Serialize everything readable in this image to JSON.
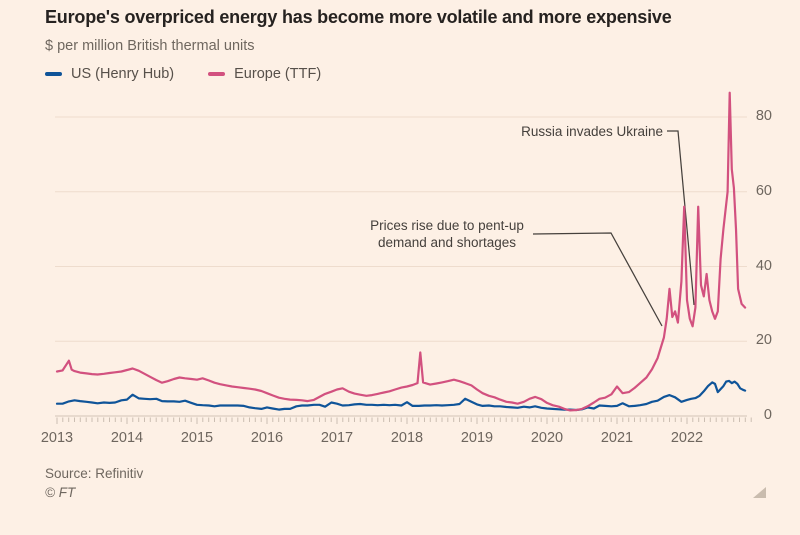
{
  "footer": {
    "source": "Source: Refinitiv",
    "copyright": "© FT"
  },
  "colors": {
    "background": "#fdf0e5",
    "title_text": "#262220",
    "muted_text": "#6f675f",
    "annotation_text": "#45403c",
    "gridline": "#eedccd",
    "zero_line": "#d3c5b8",
    "tick": "#cbbeb2",
    "us_line": "#0f5499",
    "europe_line": "#d2517f"
  },
  "chart_data": {
    "type": "line",
    "title": "Europe's overpriced energy has become more volatile and more expensive",
    "unit_label": "$ per million British thermal units",
    "xlabel": "",
    "ylabel": "$ per million British thermal units",
    "xlim": [
      2013,
      2023
    ],
    "ylim": [
      0,
      88
    ],
    "grid": "horizontal",
    "legend_position": "top-left",
    "y_ticks": [
      0,
      20,
      40,
      60,
      80
    ],
    "x_tick_labels": [
      "2013",
      "2014",
      "2015",
      "2016",
      "2017",
      "2018",
      "2019",
      "2020",
      "2021",
      "2022"
    ],
    "annotations": [
      {
        "text": "Russia invades Ukraine",
        "points_to": {
          "x": 2022.1,
          "y": 30
        }
      },
      {
        "text": "Prices rise due to pent-up demand and shortages",
        "lines": [
          "Prices rise due to pent-up",
          "demand and shortages"
        ],
        "points_to": {
          "x": 2021.65,
          "y": 24
        }
      }
    ],
    "series": [
      {
        "name": "US (Henry Hub)",
        "color": "#0f5499",
        "points": [
          [
            2013.0,
            3.3
          ],
          [
            2013.08,
            3.3
          ],
          [
            2013.17,
            3.9
          ],
          [
            2013.25,
            4.2
          ],
          [
            2013.33,
            4.0
          ],
          [
            2013.42,
            3.8
          ],
          [
            2013.5,
            3.6
          ],
          [
            2013.58,
            3.4
          ],
          [
            2013.67,
            3.6
          ],
          [
            2013.75,
            3.5
          ],
          [
            2013.83,
            3.6
          ],
          [
            2013.92,
            4.2
          ],
          [
            2014.0,
            4.4
          ],
          [
            2014.08,
            5.7
          ],
          [
            2014.17,
            4.7
          ],
          [
            2014.25,
            4.6
          ],
          [
            2014.33,
            4.5
          ],
          [
            2014.42,
            4.6
          ],
          [
            2014.5,
            4.0
          ],
          [
            2014.58,
            3.9
          ],
          [
            2014.67,
            3.9
          ],
          [
            2014.75,
            3.8
          ],
          [
            2014.83,
            4.1
          ],
          [
            2014.92,
            3.5
          ],
          [
            2015.0,
            3.0
          ],
          [
            2015.08,
            2.9
          ],
          [
            2015.17,
            2.8
          ],
          [
            2015.25,
            2.6
          ],
          [
            2015.33,
            2.8
          ],
          [
            2015.42,
            2.8
          ],
          [
            2015.5,
            2.8
          ],
          [
            2015.58,
            2.8
          ],
          [
            2015.67,
            2.7
          ],
          [
            2015.75,
            2.3
          ],
          [
            2015.83,
            2.1
          ],
          [
            2015.92,
            1.9
          ],
          [
            2016.0,
            2.3
          ],
          [
            2016.08,
            2.0
          ],
          [
            2016.17,
            1.7
          ],
          [
            2016.25,
            1.9
          ],
          [
            2016.33,
            1.9
          ],
          [
            2016.42,
            2.6
          ],
          [
            2016.5,
            2.8
          ],
          [
            2016.58,
            2.8
          ],
          [
            2016.67,
            3.0
          ],
          [
            2016.75,
            3.0
          ],
          [
            2016.83,
            2.5
          ],
          [
            2016.92,
            3.6
          ],
          [
            2017.0,
            3.3
          ],
          [
            2017.08,
            2.8
          ],
          [
            2017.17,
            2.9
          ],
          [
            2017.25,
            3.1
          ],
          [
            2017.33,
            3.2
          ],
          [
            2017.42,
            3.0
          ],
          [
            2017.5,
            3.0
          ],
          [
            2017.58,
            2.9
          ],
          [
            2017.67,
            3.0
          ],
          [
            2017.75,
            2.9
          ],
          [
            2017.83,
            3.0
          ],
          [
            2017.92,
            2.8
          ],
          [
            2018.0,
            3.7
          ],
          [
            2018.08,
            2.7
          ],
          [
            2018.17,
            2.7
          ],
          [
            2018.25,
            2.8
          ],
          [
            2018.33,
            2.8
          ],
          [
            2018.42,
            2.9
          ],
          [
            2018.5,
            2.8
          ],
          [
            2018.58,
            2.9
          ],
          [
            2018.67,
            3.0
          ],
          [
            2018.75,
            3.2
          ],
          [
            2018.83,
            4.6
          ],
          [
            2018.92,
            3.8
          ],
          [
            2019.0,
            3.1
          ],
          [
            2019.08,
            2.7
          ],
          [
            2019.17,
            2.8
          ],
          [
            2019.25,
            2.6
          ],
          [
            2019.33,
            2.6
          ],
          [
            2019.42,
            2.4
          ],
          [
            2019.5,
            2.3
          ],
          [
            2019.58,
            2.2
          ],
          [
            2019.67,
            2.5
          ],
          [
            2019.75,
            2.3
          ],
          [
            2019.83,
            2.6
          ],
          [
            2019.92,
            2.2
          ],
          [
            2020.0,
            2.0
          ],
          [
            2020.08,
            1.9
          ],
          [
            2020.17,
            1.8
          ],
          [
            2020.25,
            1.7
          ],
          [
            2020.33,
            1.7
          ],
          [
            2020.42,
            1.6
          ],
          [
            2020.5,
            1.8
          ],
          [
            2020.58,
            2.3
          ],
          [
            2020.67,
            2.0
          ],
          [
            2020.75,
            2.8
          ],
          [
            2020.83,
            2.7
          ],
          [
            2020.92,
            2.6
          ],
          [
            2021.0,
            2.7
          ],
          [
            2021.08,
            3.4
          ],
          [
            2021.17,
            2.6
          ],
          [
            2021.25,
            2.7
          ],
          [
            2021.33,
            2.9
          ],
          [
            2021.42,
            3.2
          ],
          [
            2021.5,
            3.8
          ],
          [
            2021.58,
            4.1
          ],
          [
            2021.67,
            5.1
          ],
          [
            2021.75,
            5.6
          ],
          [
            2021.83,
            5.0
          ],
          [
            2021.92,
            3.8
          ],
          [
            2022.0,
            4.3
          ],
          [
            2022.06,
            4.6
          ],
          [
            2022.12,
            4.8
          ],
          [
            2022.18,
            5.4
          ],
          [
            2022.24,
            6.6
          ],
          [
            2022.3,
            8.0
          ],
          [
            2022.36,
            9.0
          ],
          [
            2022.4,
            8.6
          ],
          [
            2022.44,
            6.4
          ],
          [
            2022.48,
            7.2
          ],
          [
            2022.52,
            8.0
          ],
          [
            2022.56,
            9.2
          ],
          [
            2022.6,
            9.4
          ],
          [
            2022.64,
            8.8
          ],
          [
            2022.68,
            9.2
          ],
          [
            2022.72,
            8.6
          ],
          [
            2022.76,
            7.4
          ],
          [
            2022.8,
            7.0
          ],
          [
            2022.83,
            6.8
          ]
        ]
      },
      {
        "name": "Europe (TTF)",
        "color": "#d2517f",
        "points": [
          [
            2013.0,
            11.9
          ],
          [
            2013.08,
            12.2
          ],
          [
            2013.17,
            14.8
          ],
          [
            2013.21,
            12.4
          ],
          [
            2013.25,
            12.0
          ],
          [
            2013.33,
            11.6
          ],
          [
            2013.42,
            11.4
          ],
          [
            2013.5,
            11.2
          ],
          [
            2013.58,
            11.1
          ],
          [
            2013.67,
            11.3
          ],
          [
            2013.75,
            11.5
          ],
          [
            2013.83,
            11.7
          ],
          [
            2013.92,
            11.9
          ],
          [
            2014.0,
            12.3
          ],
          [
            2014.08,
            12.7
          ],
          [
            2014.17,
            12.1
          ],
          [
            2014.25,
            11.3
          ],
          [
            2014.33,
            10.5
          ],
          [
            2014.42,
            9.6
          ],
          [
            2014.5,
            8.9
          ],
          [
            2014.58,
            9.3
          ],
          [
            2014.67,
            9.9
          ],
          [
            2014.75,
            10.3
          ],
          [
            2014.83,
            10.1
          ],
          [
            2014.92,
            9.9
          ],
          [
            2015.0,
            9.7
          ],
          [
            2015.08,
            10.1
          ],
          [
            2015.17,
            9.5
          ],
          [
            2015.25,
            8.9
          ],
          [
            2015.33,
            8.5
          ],
          [
            2015.42,
            8.2
          ],
          [
            2015.5,
            7.9
          ],
          [
            2015.58,
            7.7
          ],
          [
            2015.67,
            7.5
          ],
          [
            2015.75,
            7.3
          ],
          [
            2015.83,
            7.1
          ],
          [
            2015.92,
            6.7
          ],
          [
            2016.0,
            6.1
          ],
          [
            2016.08,
            5.5
          ],
          [
            2016.17,
            4.9
          ],
          [
            2016.25,
            4.6
          ],
          [
            2016.33,
            4.4
          ],
          [
            2016.42,
            4.3
          ],
          [
            2016.5,
            4.2
          ],
          [
            2016.58,
            4.0
          ],
          [
            2016.67,
            4.3
          ],
          [
            2016.75,
            5.1
          ],
          [
            2016.83,
            5.9
          ],
          [
            2016.92,
            6.5
          ],
          [
            2017.0,
            7.1
          ],
          [
            2017.08,
            7.4
          ],
          [
            2017.17,
            6.5
          ],
          [
            2017.25,
            6.0
          ],
          [
            2017.33,
            5.7
          ],
          [
            2017.42,
            5.4
          ],
          [
            2017.5,
            5.6
          ],
          [
            2017.58,
            5.9
          ],
          [
            2017.67,
            6.3
          ],
          [
            2017.75,
            6.6
          ],
          [
            2017.83,
            7.1
          ],
          [
            2017.92,
            7.6
          ],
          [
            2018.0,
            7.9
          ],
          [
            2018.08,
            8.3
          ],
          [
            2018.15,
            8.8
          ],
          [
            2018.19,
            17.0
          ],
          [
            2018.23,
            9.0
          ],
          [
            2018.33,
            8.4
          ],
          [
            2018.42,
            8.7
          ],
          [
            2018.5,
            9.0
          ],
          [
            2018.58,
            9.3
          ],
          [
            2018.67,
            9.7
          ],
          [
            2018.75,
            9.3
          ],
          [
            2018.83,
            8.8
          ],
          [
            2018.92,
            8.2
          ],
          [
            2019.0,
            7.1
          ],
          [
            2019.08,
            6.1
          ],
          [
            2019.17,
            5.4
          ],
          [
            2019.25,
            5.0
          ],
          [
            2019.33,
            4.4
          ],
          [
            2019.42,
            3.8
          ],
          [
            2019.5,
            3.6
          ],
          [
            2019.58,
            3.3
          ],
          [
            2019.67,
            3.8
          ],
          [
            2019.75,
            4.6
          ],
          [
            2019.83,
            5.1
          ],
          [
            2019.92,
            4.5
          ],
          [
            2020.0,
            3.5
          ],
          [
            2020.08,
            2.9
          ],
          [
            2020.17,
            2.5
          ],
          [
            2020.25,
            1.9
          ],
          [
            2020.33,
            1.5
          ],
          [
            2020.42,
            1.6
          ],
          [
            2020.5,
            1.9
          ],
          [
            2020.58,
            2.6
          ],
          [
            2020.67,
            3.6
          ],
          [
            2020.75,
            4.6
          ],
          [
            2020.83,
            4.9
          ],
          [
            2020.92,
            5.8
          ],
          [
            2021.0,
            7.9
          ],
          [
            2021.08,
            6.1
          ],
          [
            2021.17,
            6.4
          ],
          [
            2021.25,
            7.5
          ],
          [
            2021.33,
            8.8
          ],
          [
            2021.42,
            10.3
          ],
          [
            2021.5,
            12.5
          ],
          [
            2021.58,
            15.5
          ],
          [
            2021.67,
            21.0
          ],
          [
            2021.71,
            26.0
          ],
          [
            2021.75,
            34.0
          ],
          [
            2021.79,
            26.5
          ],
          [
            2021.83,
            28.0
          ],
          [
            2021.87,
            25.0
          ],
          [
            2021.92,
            36.0
          ],
          [
            2021.96,
            56.0
          ],
          [
            2022.0,
            31.0
          ],
          [
            2022.04,
            26.0
          ],
          [
            2022.08,
            24.0
          ],
          [
            2022.12,
            29.0
          ],
          [
            2022.16,
            56.0
          ],
          [
            2022.2,
            35.0
          ],
          [
            2022.24,
            32.0
          ],
          [
            2022.28,
            38.0
          ],
          [
            2022.32,
            31.0
          ],
          [
            2022.36,
            28.0
          ],
          [
            2022.4,
            26.0
          ],
          [
            2022.44,
            28.0
          ],
          [
            2022.48,
            42.0
          ],
          [
            2022.52,
            50.0
          ],
          [
            2022.55,
            55.0
          ],
          [
            2022.58,
            60.0
          ],
          [
            2022.61,
            86.5
          ],
          [
            2022.64,
            66.0
          ],
          [
            2022.67,
            61.0
          ],
          [
            2022.7,
            50.0
          ],
          [
            2022.73,
            34.0
          ],
          [
            2022.78,
            30.0
          ],
          [
            2022.83,
            29.0
          ]
        ]
      }
    ]
  }
}
